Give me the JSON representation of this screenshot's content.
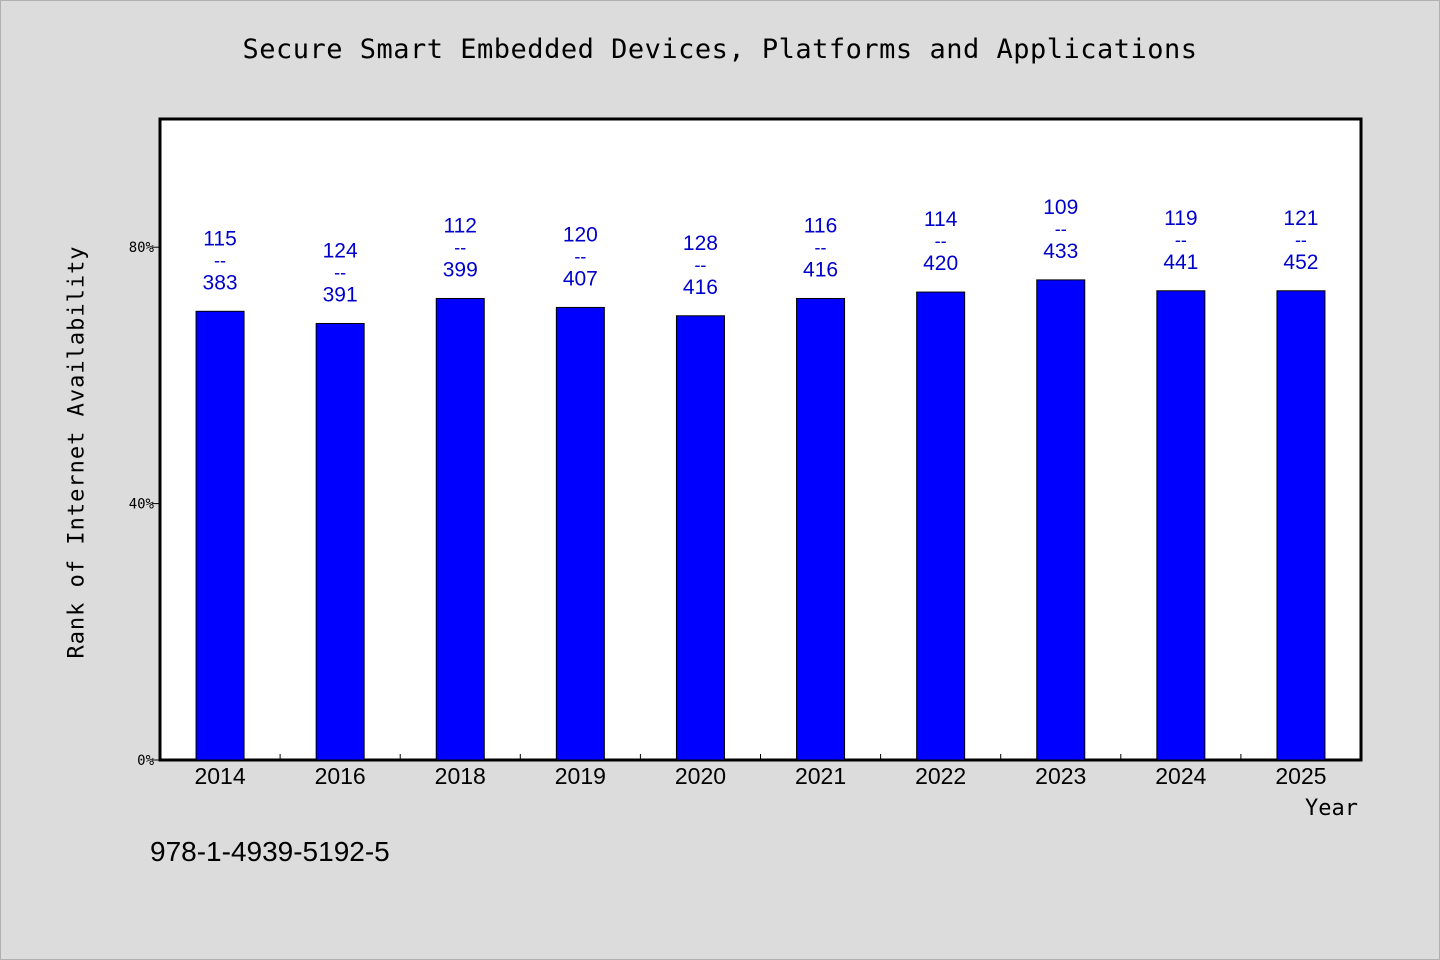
{
  "chart_data": {
    "type": "bar",
    "title": "Secure Smart Embedded Devices, Platforms and Applications",
    "xlabel": "Year",
    "ylabel": "Rank of Internet Availability",
    "categories": [
      "2014",
      "2016",
      "2018",
      "2019",
      "2020",
      "2021",
      "2022",
      "2023",
      "2024",
      "2025"
    ],
    "values": [
      70.0,
      68.1,
      72.0,
      70.6,
      69.3,
      72.0,
      73.0,
      74.9,
      73.2,
      73.2
    ],
    "ranks": [
      115,
      124,
      112,
      120,
      128,
      116,
      114,
      109,
      119,
      121
    ],
    "totals": [
      383,
      391,
      399,
      407,
      416,
      416,
      420,
      433,
      441,
      452
    ],
    "label_separator": "--",
    "ylim": [
      0,
      100
    ],
    "yticks": [
      0,
      40,
      80
    ],
    "ytick_labels": [
      "0%",
      "40%",
      "80%"
    ],
    "grid": false,
    "bar_color": "#0000ff",
    "label_color": "#0000cc"
  },
  "footer": {
    "isbn": "978-1-4939-5192-5"
  }
}
